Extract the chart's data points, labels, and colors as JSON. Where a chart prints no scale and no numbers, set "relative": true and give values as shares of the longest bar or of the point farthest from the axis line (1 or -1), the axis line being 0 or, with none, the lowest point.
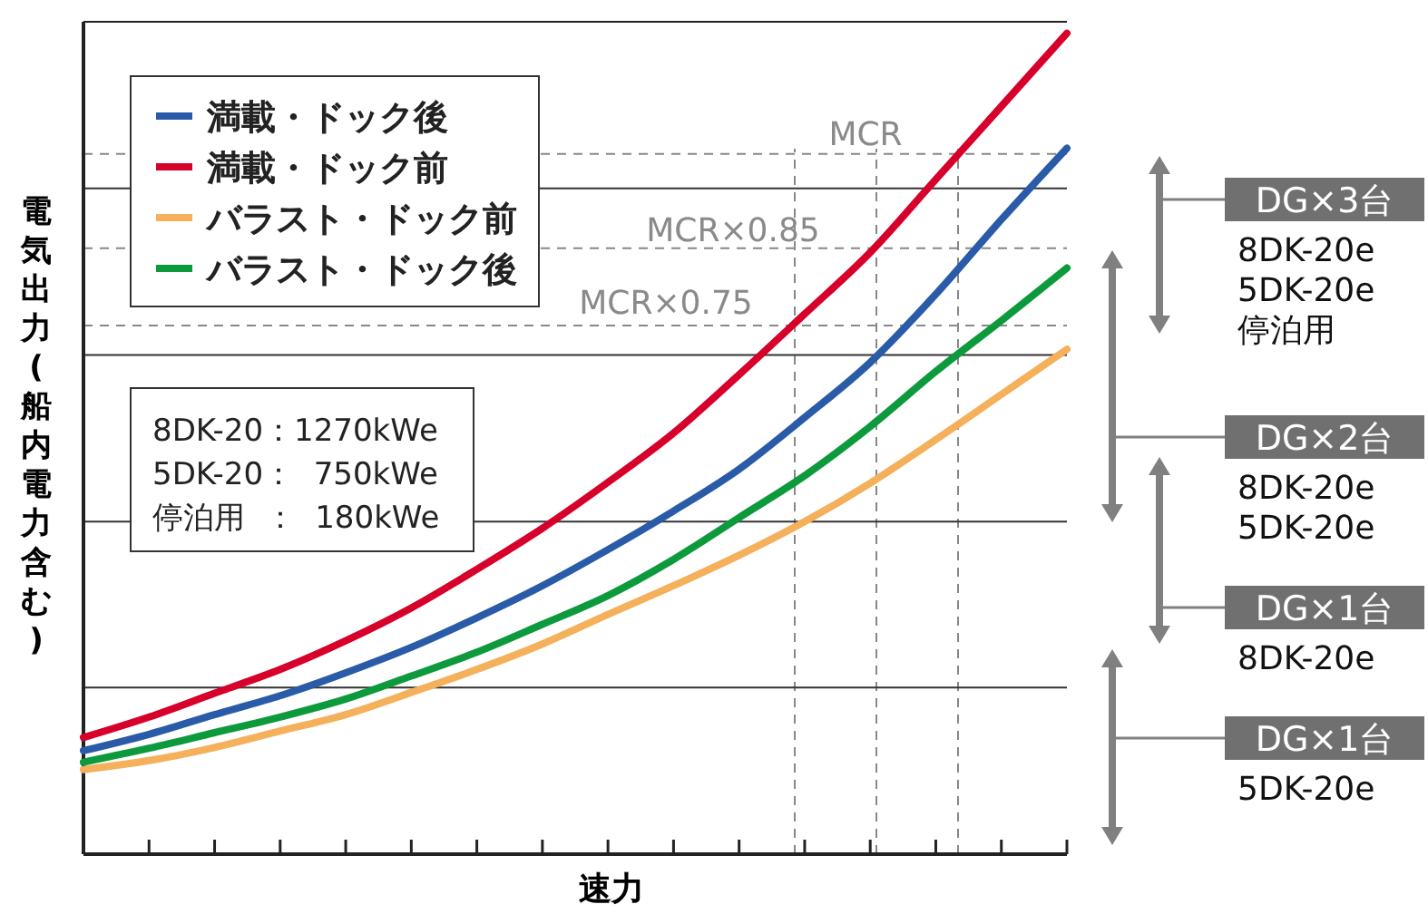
{
  "chart_data": {
    "type": "line",
    "relative": true,
    "xlabel": "速力",
    "ylabel": "電気出力(船内電力含む)",
    "categories": [
      null,
      null,
      null,
      null,
      null,
      null,
      null,
      null,
      null,
      null,
      null,
      null,
      null,
      null,
      null,
      null
    ],
    "series": [
      {
        "name": "満載・ドック後",
        "color": "#2a5ba8",
        "values": [
          0.126,
          0.146,
          0.17,
          0.193,
          0.221,
          0.252,
          0.288,
          0.327,
          0.371,
          0.418,
          0.469,
          0.532,
          0.599,
          0.682,
          0.773,
          0.86
        ]
      },
      {
        "name": "満載・ドック前",
        "color": "#d7002a",
        "values": [
          0.142,
          0.167,
          0.196,
          0.225,
          0.26,
          0.3,
          0.347,
          0.397,
          0.453,
          0.513,
          0.584,
          0.658,
          0.733,
          0.822,
          0.911,
          1.0
        ]
      },
      {
        "name": "バラスト・ドック前",
        "color": "#f4b05a",
        "values": [
          0.103,
          0.114,
          0.13,
          0.15,
          0.17,
          0.197,
          0.225,
          0.256,
          0.292,
          0.327,
          0.364,
          0.405,
          0.452,
          0.505,
          0.56,
          0.615
        ]
      },
      {
        "name": "バラスト・ドック後",
        "color": "#0c9a3c",
        "values": [
          0.112,
          0.129,
          0.148,
          0.167,
          0.189,
          0.217,
          0.246,
          0.28,
          0.315,
          0.359,
          0.41,
          0.461,
          0.521,
          0.588,
          0.65,
          0.714
        ]
      }
    ],
    "legend": "top left",
    "marker": "none",
    "line_style": "solid",
    "ref_lines": [
      {
        "axis": "y",
        "value": 0.853,
        "label": "MCR",
        "line_style": "dashed",
        "color": "#888888"
      },
      {
        "axis": "y",
        "value": 0.738,
        "label": "MCR×0.85",
        "line_style": "dashed",
        "color": "#888888"
      },
      {
        "axis": "y",
        "value": 0.644,
        "label": "MCR×0.75",
        "line_style": "dashed",
        "color": "#888888"
      },
      {
        "axis": "y",
        "value": 0.811,
        "label": null,
        "line_style": "solid",
        "color": "#333333"
      },
      {
        "axis": "y",
        "value": 0.608,
        "label": null,
        "line_style": "solid",
        "color": "#333333"
      },
      {
        "axis": "y",
        "value": 0.405,
        "label": null,
        "line_style": "solid",
        "color": "#333333"
      },
      {
        "axis": "y",
        "value": 0.203,
        "label": null,
        "line_style": "solid",
        "color": "#333333"
      }
    ],
    "annotations": [
      "8DK-20：1270kWe",
      "5DK-20：  750kWe",
      "停泊用  ：  180kWe",
      "DG×3台",
      "8DK-20e",
      "5DK-20e",
      "停泊用",
      "DG×2台",
      "8DK-20e",
      "5DK-20e",
      "DG×1台",
      "8DK-20e",
      "DG×1台",
      "5DK-20e"
    ]
  }
}
